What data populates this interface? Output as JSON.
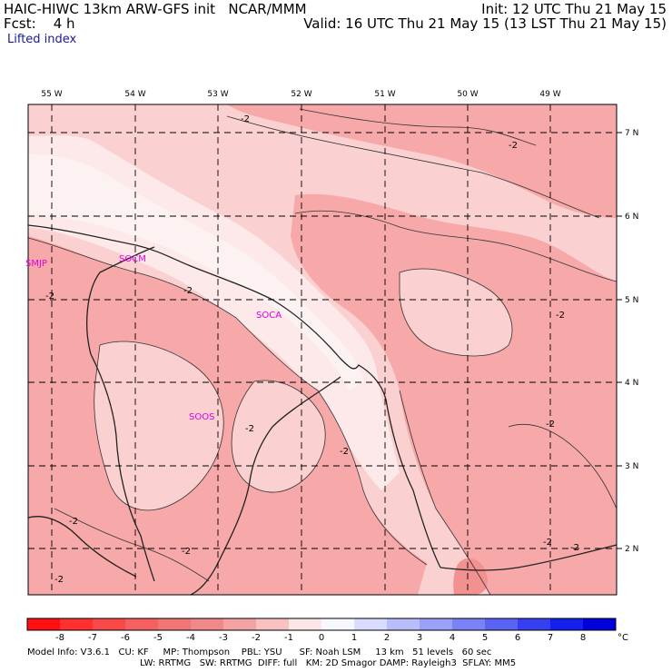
{
  "header": {
    "line1_left": "HAIC-HIWC 13km ARW-GFS init   NCAR/MMM",
    "line1_right": "Init: 12 UTC Thu 21 May 15",
    "line2_left": "Fcst:    4 h",
    "line2_right": "Valid: 16 UTC Thu 21 May 15 (13 LST Thu 21 May 15)",
    "field": "Lifted index"
  },
  "map": {
    "lon_labels": [
      "55 W",
      "54 W",
      "53 W",
      "52 W",
      "51 W",
      "50 W",
      "49 W"
    ],
    "lat_labels": [
      "7 N",
      "6 N",
      "5 N",
      "4 N",
      "3 N",
      "2 N"
    ],
    "stations": [
      "SMJP",
      "SOCM",
      "SOCA",
      "SOOS"
    ],
    "contour_label": "-2",
    "colors": {
      "lt_neg1": "#fbd0d0",
      "lt_neg2": "#f7a8a8",
      "lt_neg3": "#f39090",
      "near0": "#fdf2f2",
      "pos": "#eceefd",
      "border": "#222222"
    }
  },
  "colorbar": {
    "ticks": [
      "-8",
      "-7",
      "-6",
      "-5",
      "-4",
      "-3",
      "-2",
      "-1",
      "0",
      "1",
      "2",
      "3",
      "4",
      "5",
      "6",
      "7",
      "8"
    ],
    "unit": "°C",
    "colors": [
      "#ff1010",
      "#ff3030",
      "#f94848",
      "#f56060",
      "#f27575",
      "#f08989",
      "#f3a3a3",
      "#f8c2c2",
      "#fde6e6",
      "#f7f7ff",
      "#d9dcff",
      "#b8bdfb",
      "#9aa1f8",
      "#7a82f5",
      "#5a63f2",
      "#3740ef",
      "#1520ec",
      "#0000dd"
    ]
  },
  "footer": {
    "line1": "Model Info: V3.6.1   CU: KF     MP: Thompson    PBL: YSU      SF: Noah LSM     13 km   51 levels   60 sec",
    "line2": "LW: RRTMG   SW: RRTMG  DIFF: full   KM: 2D Smagor DAMP: Rayleigh3  SFLAY: MM5"
  }
}
